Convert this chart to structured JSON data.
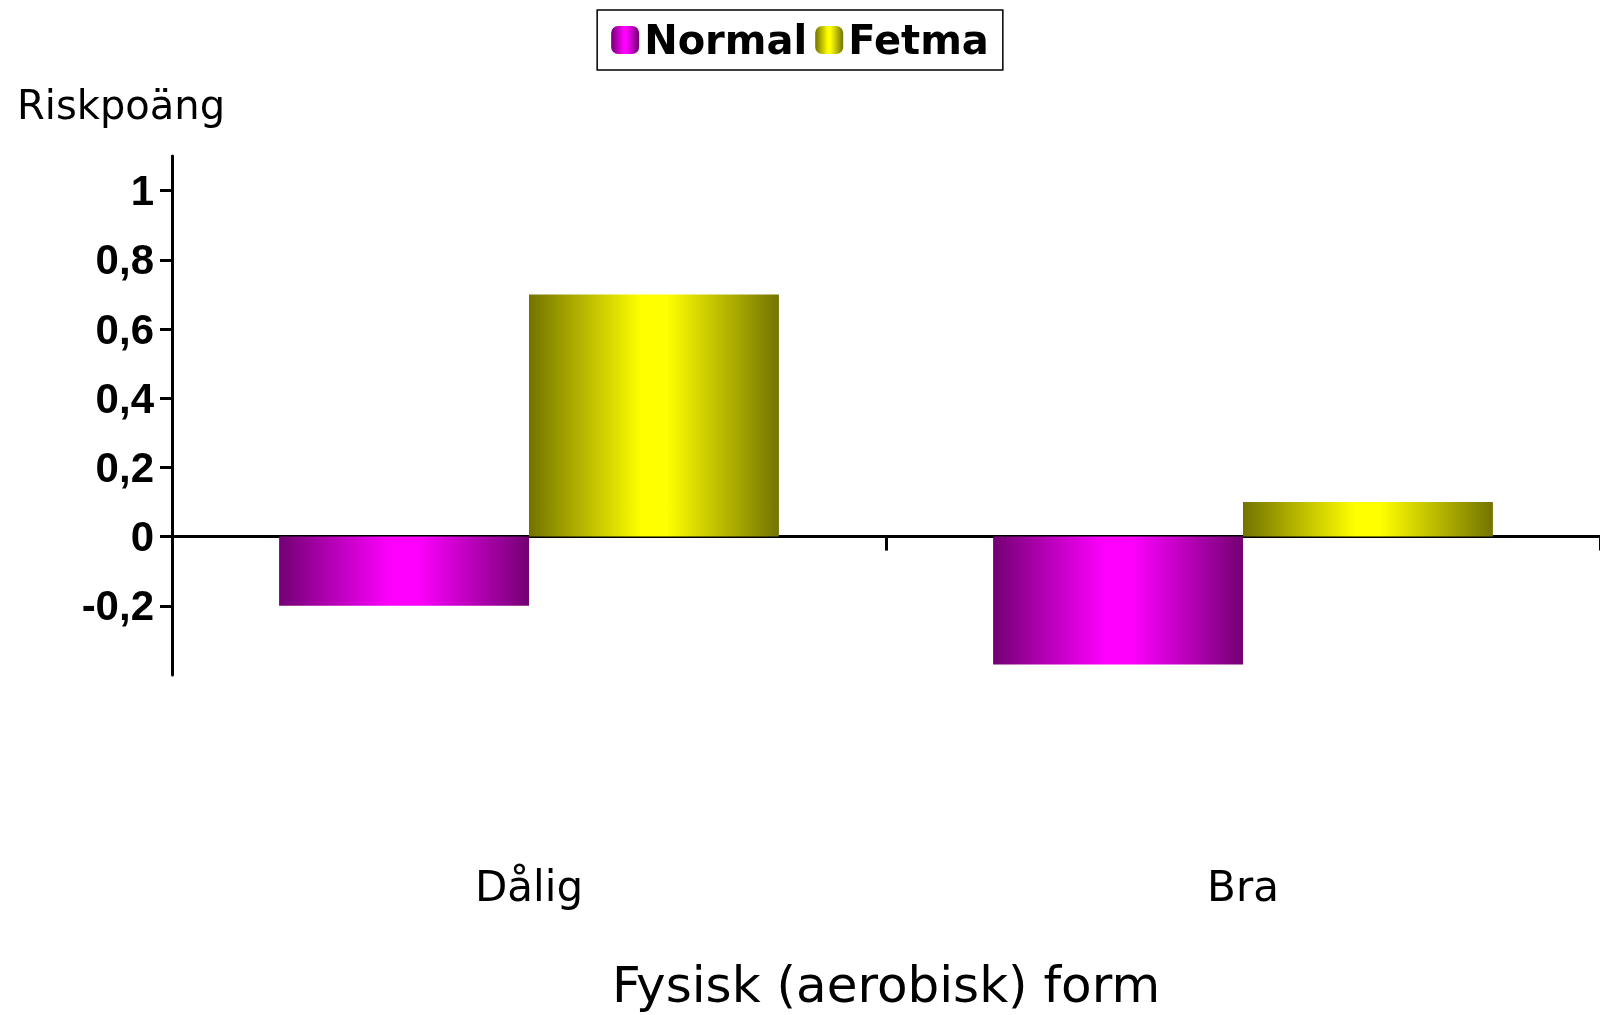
{
  "chart_data": {
    "type": "bar",
    "xlabel": "Fysisk (aerobisk) form",
    "ylabel": "Riskpoäng",
    "categories": [
      "Dålig",
      "Bra"
    ],
    "series": [
      {
        "name": "Normal",
        "color": "#ff00ff",
        "values": [
          -0.2,
          -0.37
        ]
      },
      {
        "name": "Fetma",
        "color": "#ffff00",
        "values": [
          0.7,
          0.1
        ]
      }
    ],
    "ylim": [
      -0.4,
      1.1
    ],
    "yticks": [
      {
        "value": -0.2,
        "label": "-0,2"
      },
      {
        "value": 0,
        "label": "0"
      },
      {
        "value": 0.2,
        "label": "0,2"
      },
      {
        "value": 0.4,
        "label": "0,4"
      },
      {
        "value": 0.6,
        "label": "0,6"
      },
      {
        "value": 0.8,
        "label": "0,8"
      },
      {
        "value": 1,
        "label": "1"
      }
    ],
    "legend": "top"
  }
}
